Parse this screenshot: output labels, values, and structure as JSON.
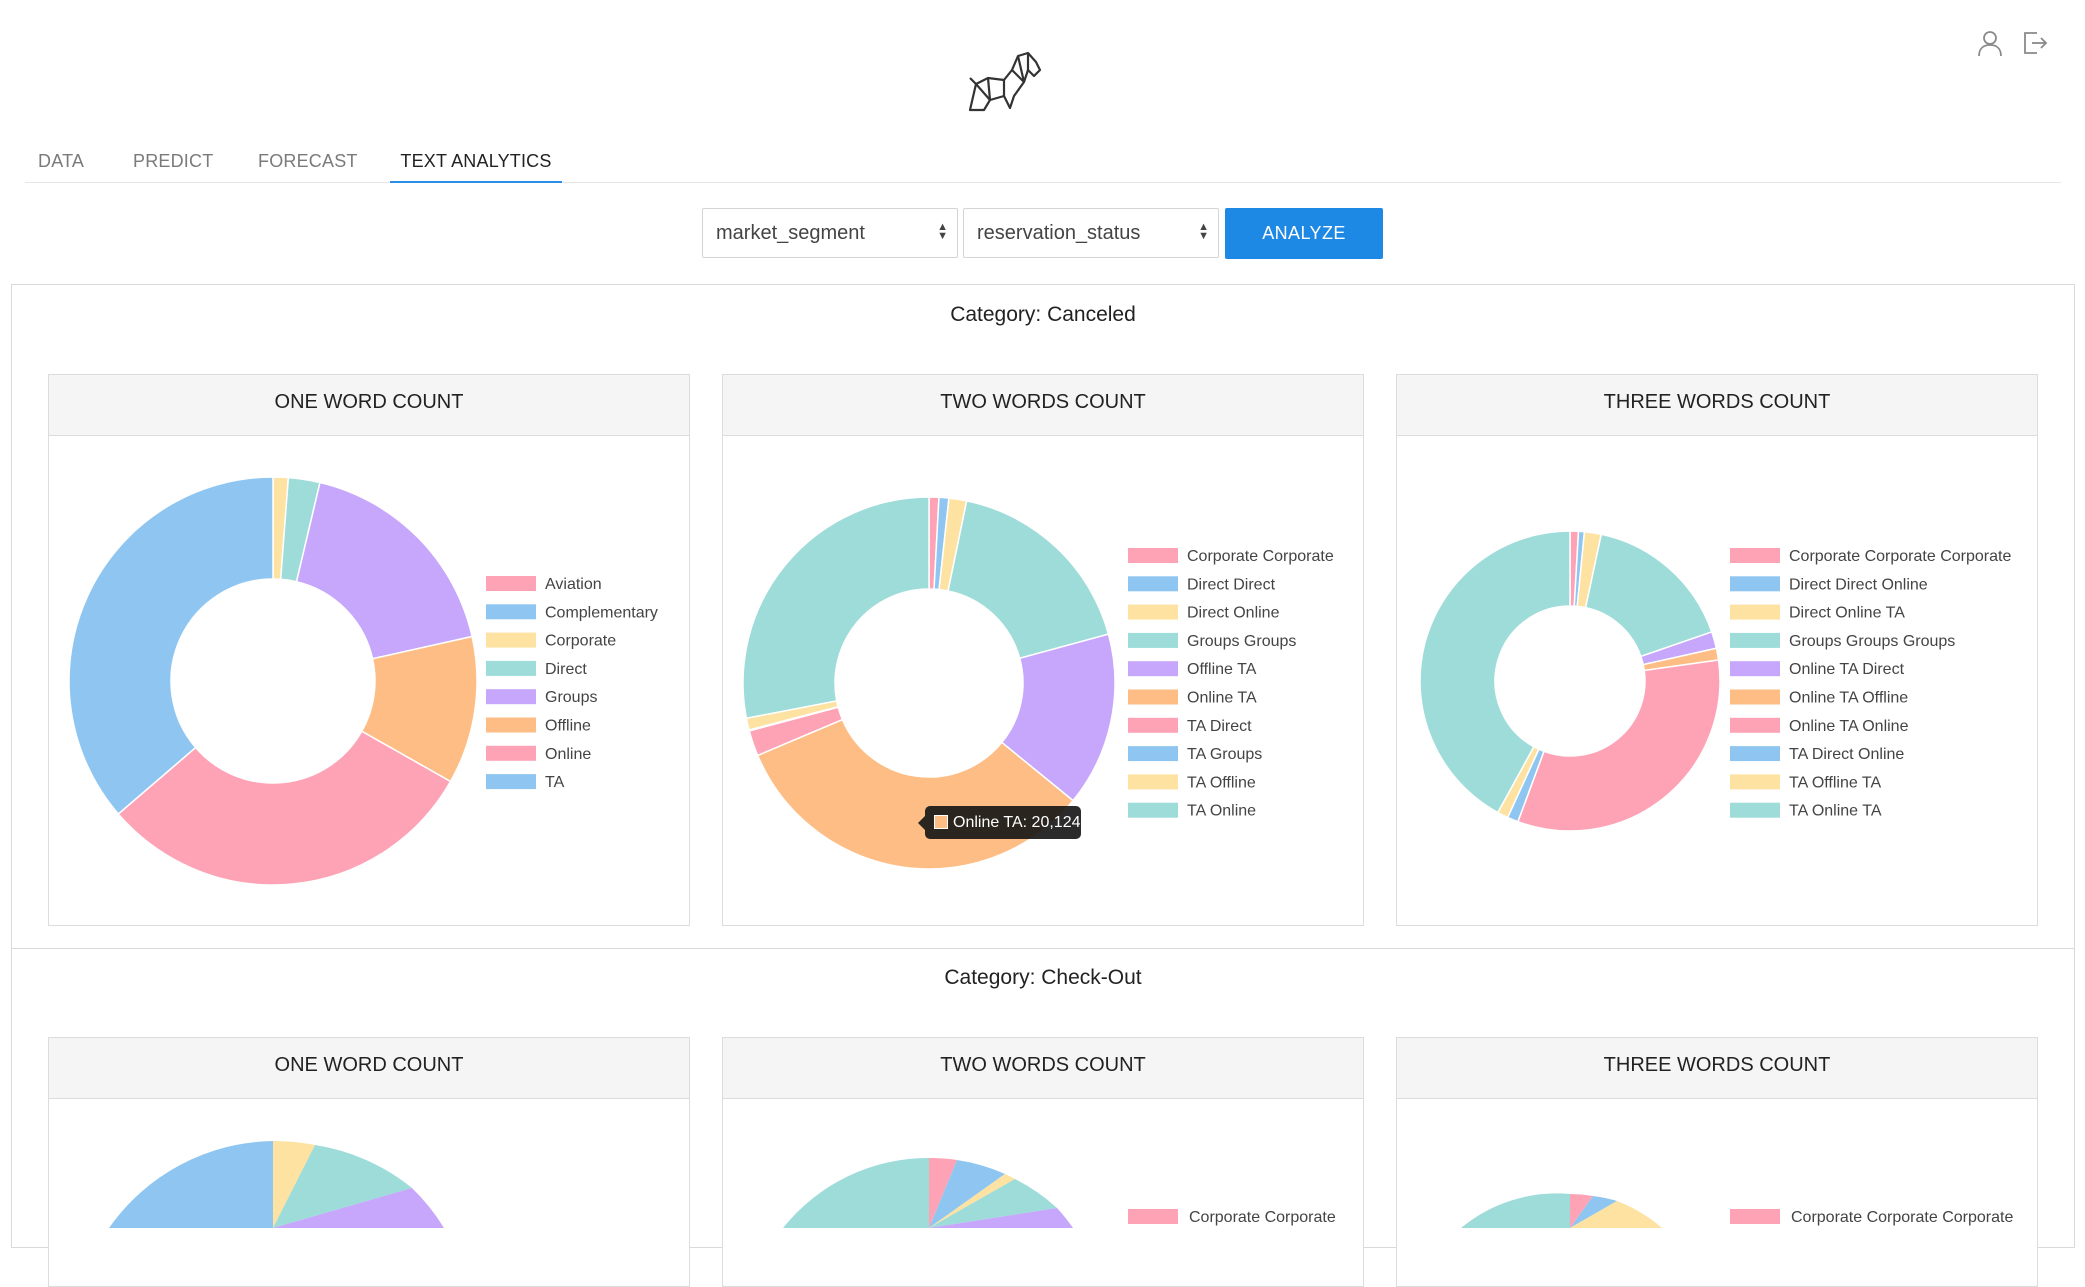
{
  "header": {
    "logo": "origami-dog-logo",
    "user_icon": "user-icon",
    "logout_icon": "logout-icon"
  },
  "tabs": [
    {
      "label": "DATA",
      "active": false
    },
    {
      "label": "PREDICT",
      "active": false
    },
    {
      "label": "FORECAST",
      "active": false
    },
    {
      "label": "TEXT ANALYTICS",
      "active": true
    }
  ],
  "controls": {
    "column_select": "market_segment",
    "category_select": "reservation_status",
    "analyze_label": "ANALYZE"
  },
  "colors": {
    "pink": "#fea3b5",
    "blue": "#8fc6f1",
    "yellow": "#fde2a2",
    "teal": "#9ddcd9",
    "purple": "#c6a7fb",
    "orange": "#fdbd84",
    "accent": "#1e88e5"
  },
  "tooltip": "Online TA: 20,124",
  "categories": [
    {
      "title": "Category: Canceled",
      "charts": [
        {
          "header": "ONE WORD COUNT",
          "legend": [
            "Aviation",
            "Complementary",
            "Corporate",
            "Direct",
            "Groups",
            "Offline",
            "Online",
            "TA"
          ]
        },
        {
          "header": "TWO WORDS COUNT",
          "legend": [
            "Corporate Corporate",
            "Direct Direct",
            "Direct Online",
            "Groups Groups",
            "Offline TA",
            "Online TA",
            "TA Direct",
            "TA Groups",
            "TA Offline",
            "TA Online"
          ]
        },
        {
          "header": "THREE WORDS COUNT",
          "legend": [
            "Corporate Corporate Corporate",
            "Direct Direct Online",
            "Direct Online TA",
            "Groups Groups Groups",
            "Online TA Direct",
            "Online TA Offline",
            "Online TA Online",
            "TA Direct Online",
            "TA Offline TA",
            "TA Online TA"
          ]
        }
      ]
    },
    {
      "title": "Category: Check-Out",
      "charts": [
        {
          "header": "ONE WORD COUNT"
        },
        {
          "header": "TWO WORDS COUNT",
          "legend": [
            "Corporate Corporate"
          ]
        },
        {
          "header": "THREE WORDS COUNT",
          "legend": [
            "Corporate Corporate Corporate"
          ]
        }
      ]
    }
  ],
  "chart_data": [
    {
      "type": "pie",
      "title": "ONE WORD COUNT",
      "categories": [
        "Aviation",
        "Complementary",
        "Corporate",
        "Direct",
        "Groups",
        "Offline",
        "Online",
        "TA"
      ],
      "values": [
        0,
        0,
        1.2,
        2.5,
        17.8,
        11.7,
        30.5,
        36.3
      ]
    },
    {
      "type": "pie",
      "title": "TWO WORDS COUNT",
      "categories": [
        "Corporate Corporate",
        "Direct Direct",
        "Direct Online",
        "Groups Groups",
        "Offline TA",
        "Online TA",
        "TA Direct",
        "TA Groups",
        "TA Offline",
        "TA Online"
      ],
      "values": [
        1,
        1,
        1.8,
        20.5,
        17.7,
        38.3,
        2.6,
        0.1,
        1.2,
        32.8
      ]
    },
    {
      "type": "pie",
      "title": "THREE WORDS COUNT",
      "categories": [
        "Corporate Corporate Corporate",
        "Direct Direct Online",
        "Direct Online TA",
        "Groups Groups Groups",
        "Online TA Direct",
        "Online TA Offline",
        "Online TA Online",
        "TA Direct Online",
        "TA Offline TA",
        "TA Online TA"
      ],
      "values": [
        1,
        0.7,
        2,
        18.1,
        2,
        1.4,
        36.4,
        1.3,
        1.3,
        46.5
      ]
    }
  ]
}
